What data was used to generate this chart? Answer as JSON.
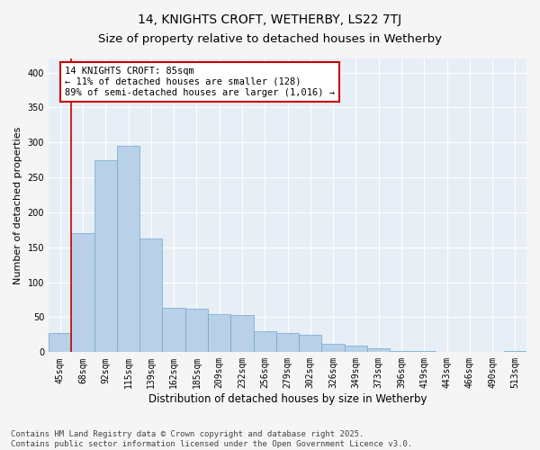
{
  "title_line1": "14, KNIGHTS CROFT, WETHERBY, LS22 7TJ",
  "title_line2": "Size of property relative to detached houses in Wetherby",
  "xlabel": "Distribution of detached houses by size in Wetherby",
  "ylabel": "Number of detached properties",
  "categories": [
    "45sqm",
    "68sqm",
    "92sqm",
    "115sqm",
    "139sqm",
    "162sqm",
    "185sqm",
    "209sqm",
    "232sqm",
    "256sqm",
    "279sqm",
    "302sqm",
    "326sqm",
    "349sqm",
    "373sqm",
    "396sqm",
    "419sqm",
    "443sqm",
    "466sqm",
    "490sqm",
    "513sqm"
  ],
  "values": [
    28,
    170,
    275,
    295,
    162,
    63,
    62,
    54,
    53,
    30,
    27,
    25,
    12,
    9,
    6,
    2,
    2,
    1,
    1,
    1,
    2
  ],
  "bar_color": "#b8d0e8",
  "bar_edge_color": "#6fa8d0",
  "bar_edge_width": 0.5,
  "vline_color": "#cc0000",
  "vline_x_index": 1,
  "annotation_text": "14 KNIGHTS CROFT: 85sqm\n← 11% of detached houses are smaller (128)\n89% of semi-detached houses are larger (1,016) →",
  "annotation_box_edgecolor": "#cc0000",
  "ylim": [
    0,
    420
  ],
  "yticks": [
    0,
    50,
    100,
    150,
    200,
    250,
    300,
    350,
    400
  ],
  "plot_bg_color": "#e8eef5",
  "fig_bg_color": "#f5f5f5",
  "grid_color": "#ffffff",
  "footer_text": "Contains HM Land Registry data © Crown copyright and database right 2025.\nContains public sector information licensed under the Open Government Licence v3.0.",
  "title1_fontsize": 10,
  "title2_fontsize": 9.5,
  "tick_fontsize": 7,
  "ylabel_fontsize": 8,
  "xlabel_fontsize": 8.5,
  "annot_fontsize": 7.5,
  "footer_fontsize": 6.5
}
